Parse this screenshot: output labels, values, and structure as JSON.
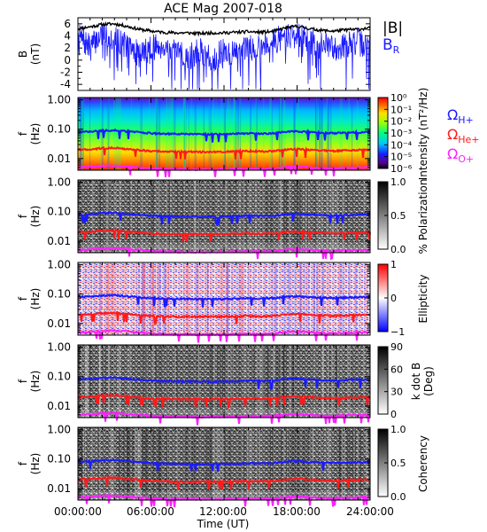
{
  "title": "ACE Mag 2007-018",
  "xlabel": "Time (UT)",
  "time_ticks": [
    "00:00:00",
    "06:00:00",
    "12:00:00",
    "18:00:00",
    "24:00:00"
  ],
  "freq_ticks": [
    "1.00",
    "0.10",
    "0.01"
  ],
  "colors": {
    "B_total": "#000000",
    "B_R": "#1a1aff",
    "O_H": "#1a1aff",
    "O_He": "#ff1a1a",
    "O_O": "#ff20ff"
  },
  "chart_data": [
    {
      "type": "line",
      "panel": "B",
      "ylabel_top": "B",
      "ylabel_bottom": "(nT)",
      "ylim": [
        -5,
        7
      ],
      "y_ticks": [
        "6",
        "4",
        "2",
        "0",
        "-2",
        "-4"
      ],
      "x_range_hours": [
        0,
        24
      ],
      "legend": [
        "|B|",
        "B"
      ],
      "legend_subscript": "R",
      "series": [
        {
          "name": "|B|",
          "x_hours": [
            0,
            1,
            2,
            3,
            4,
            5,
            6,
            7,
            8,
            9,
            10,
            11,
            12,
            13,
            14,
            15,
            16,
            17,
            18,
            19,
            20,
            21,
            22,
            23,
            24
          ],
          "values": [
            5.2,
            5.5,
            5.9,
            6.0,
            5.6,
            5.1,
            4.8,
            4.6,
            4.5,
            4.5,
            4.4,
            4.5,
            4.5,
            4.6,
            4.7,
            4.6,
            4.7,
            5.3,
            5.6,
            5.2,
            4.9,
            4.8,
            5.0,
            5.1,
            5.3
          ]
        },
        {
          "name": "B_R",
          "x_hours": [
            0,
            1,
            2,
            3,
            4,
            5,
            6,
            7,
            8,
            9,
            10,
            11,
            12,
            13,
            14,
            15,
            16,
            17,
            18,
            19,
            20,
            21,
            22,
            23,
            24
          ],
          "values": [
            4.0,
            2.0,
            4.5,
            3.5,
            2.5,
            1.0,
            2.0,
            2.5,
            1.0,
            0.5,
            1.5,
            0.0,
            1.5,
            1.0,
            2.0,
            2.5,
            3.0,
            4.0,
            4.2,
            3.0,
            2.5,
            2.0,
            2.5,
            3.0,
            2.0
          ]
        }
      ]
    },
    {
      "type": "heatmap",
      "panel": "Intensity",
      "ylabel_top": "f",
      "ylabel_bottom": "(Hz)",
      "y_scale": "log",
      "ylim": [
        0.004,
        1.0
      ],
      "colorbar_label": "Intensity (nT²/Hz)",
      "colorbar_ticks": [
        "10⁰",
        "10⁻¹",
        "10⁻²",
        "10⁻³",
        "10⁻⁴",
        "10⁻⁵",
        "10⁻⁶"
      ],
      "legend": [
        "Ω",
        "Ω",
        "Ω"
      ],
      "legend_subscripts": [
        "H+",
        "He+",
        "O+"
      ]
    },
    {
      "type": "heatmap",
      "panel": "Polarization",
      "ylabel_top": "f",
      "ylabel_bottom": "(Hz)",
      "y_scale": "log",
      "colorbar_label": "% Polarization",
      "colorbar_ticks": [
        "1.0",
        "0.5",
        "0.0"
      ]
    },
    {
      "type": "heatmap",
      "panel": "Ellipticity",
      "ylabel_top": "f",
      "ylabel_bottom": "(Hz)",
      "y_scale": "log",
      "colorbar_label": "Ellipticity",
      "colorbar_ticks": [
        "1",
        "0",
        "−1"
      ]
    },
    {
      "type": "heatmap",
      "panel": "kdotB",
      "ylabel_top": "f",
      "ylabel_bottom": "(Hz)",
      "y_scale": "log",
      "colorbar_label_top": "k dot B",
      "colorbar_label_bottom": "(Deg)",
      "colorbar_ticks": [
        "90",
        "60",
        "30",
        "0"
      ]
    },
    {
      "type": "heatmap",
      "panel": "Coherency",
      "ylabel_top": "f",
      "ylabel_bottom": "(Hz)",
      "y_scale": "log",
      "colorbar_label": "Coherency",
      "colorbar_ticks": [
        "1.0",
        "0.5",
        "0.0"
      ]
    },
    {
      "type": "line",
      "panel": "gyrofrequencies",
      "y_unit": "Hz",
      "x_hours": [
        0,
        1,
        2,
        3,
        4,
        5,
        6,
        7,
        8,
        9,
        10,
        11,
        12,
        13,
        14,
        15,
        16,
        17,
        18,
        19,
        20,
        21,
        22,
        23,
        24
      ],
      "series": [
        {
          "name": "Ω_H+",
          "values": [
            0.08,
            0.082,
            0.09,
            0.092,
            0.085,
            0.078,
            0.073,
            0.07,
            0.069,
            0.068,
            0.067,
            0.068,
            0.068,
            0.07,
            0.072,
            0.07,
            0.072,
            0.081,
            0.085,
            0.079,
            0.075,
            0.073,
            0.076,
            0.078,
            0.08
          ]
        },
        {
          "name": "Ω_He+",
          "values": [
            0.02,
            0.0205,
            0.0225,
            0.023,
            0.021,
            0.0195,
            0.018,
            0.0175,
            0.017,
            0.017,
            0.0168,
            0.017,
            0.017,
            0.0175,
            0.018,
            0.0175,
            0.018,
            0.02,
            0.021,
            0.0198,
            0.019,
            0.018,
            0.019,
            0.0195,
            0.02
          ]
        },
        {
          "name": "Ω_O+",
          "values": [
            0.005,
            0.0051,
            0.0056,
            0.0057,
            0.0053,
            0.0049,
            0.0046,
            0.0044,
            0.0043,
            0.0043,
            0.0042,
            0.0043,
            0.0043,
            0.0044,
            0.0045,
            0.0044,
            0.0045,
            0.005,
            0.0053,
            0.005,
            0.0047,
            0.0046,
            0.0048,
            0.0049,
            0.005
          ]
        }
      ]
    }
  ]
}
